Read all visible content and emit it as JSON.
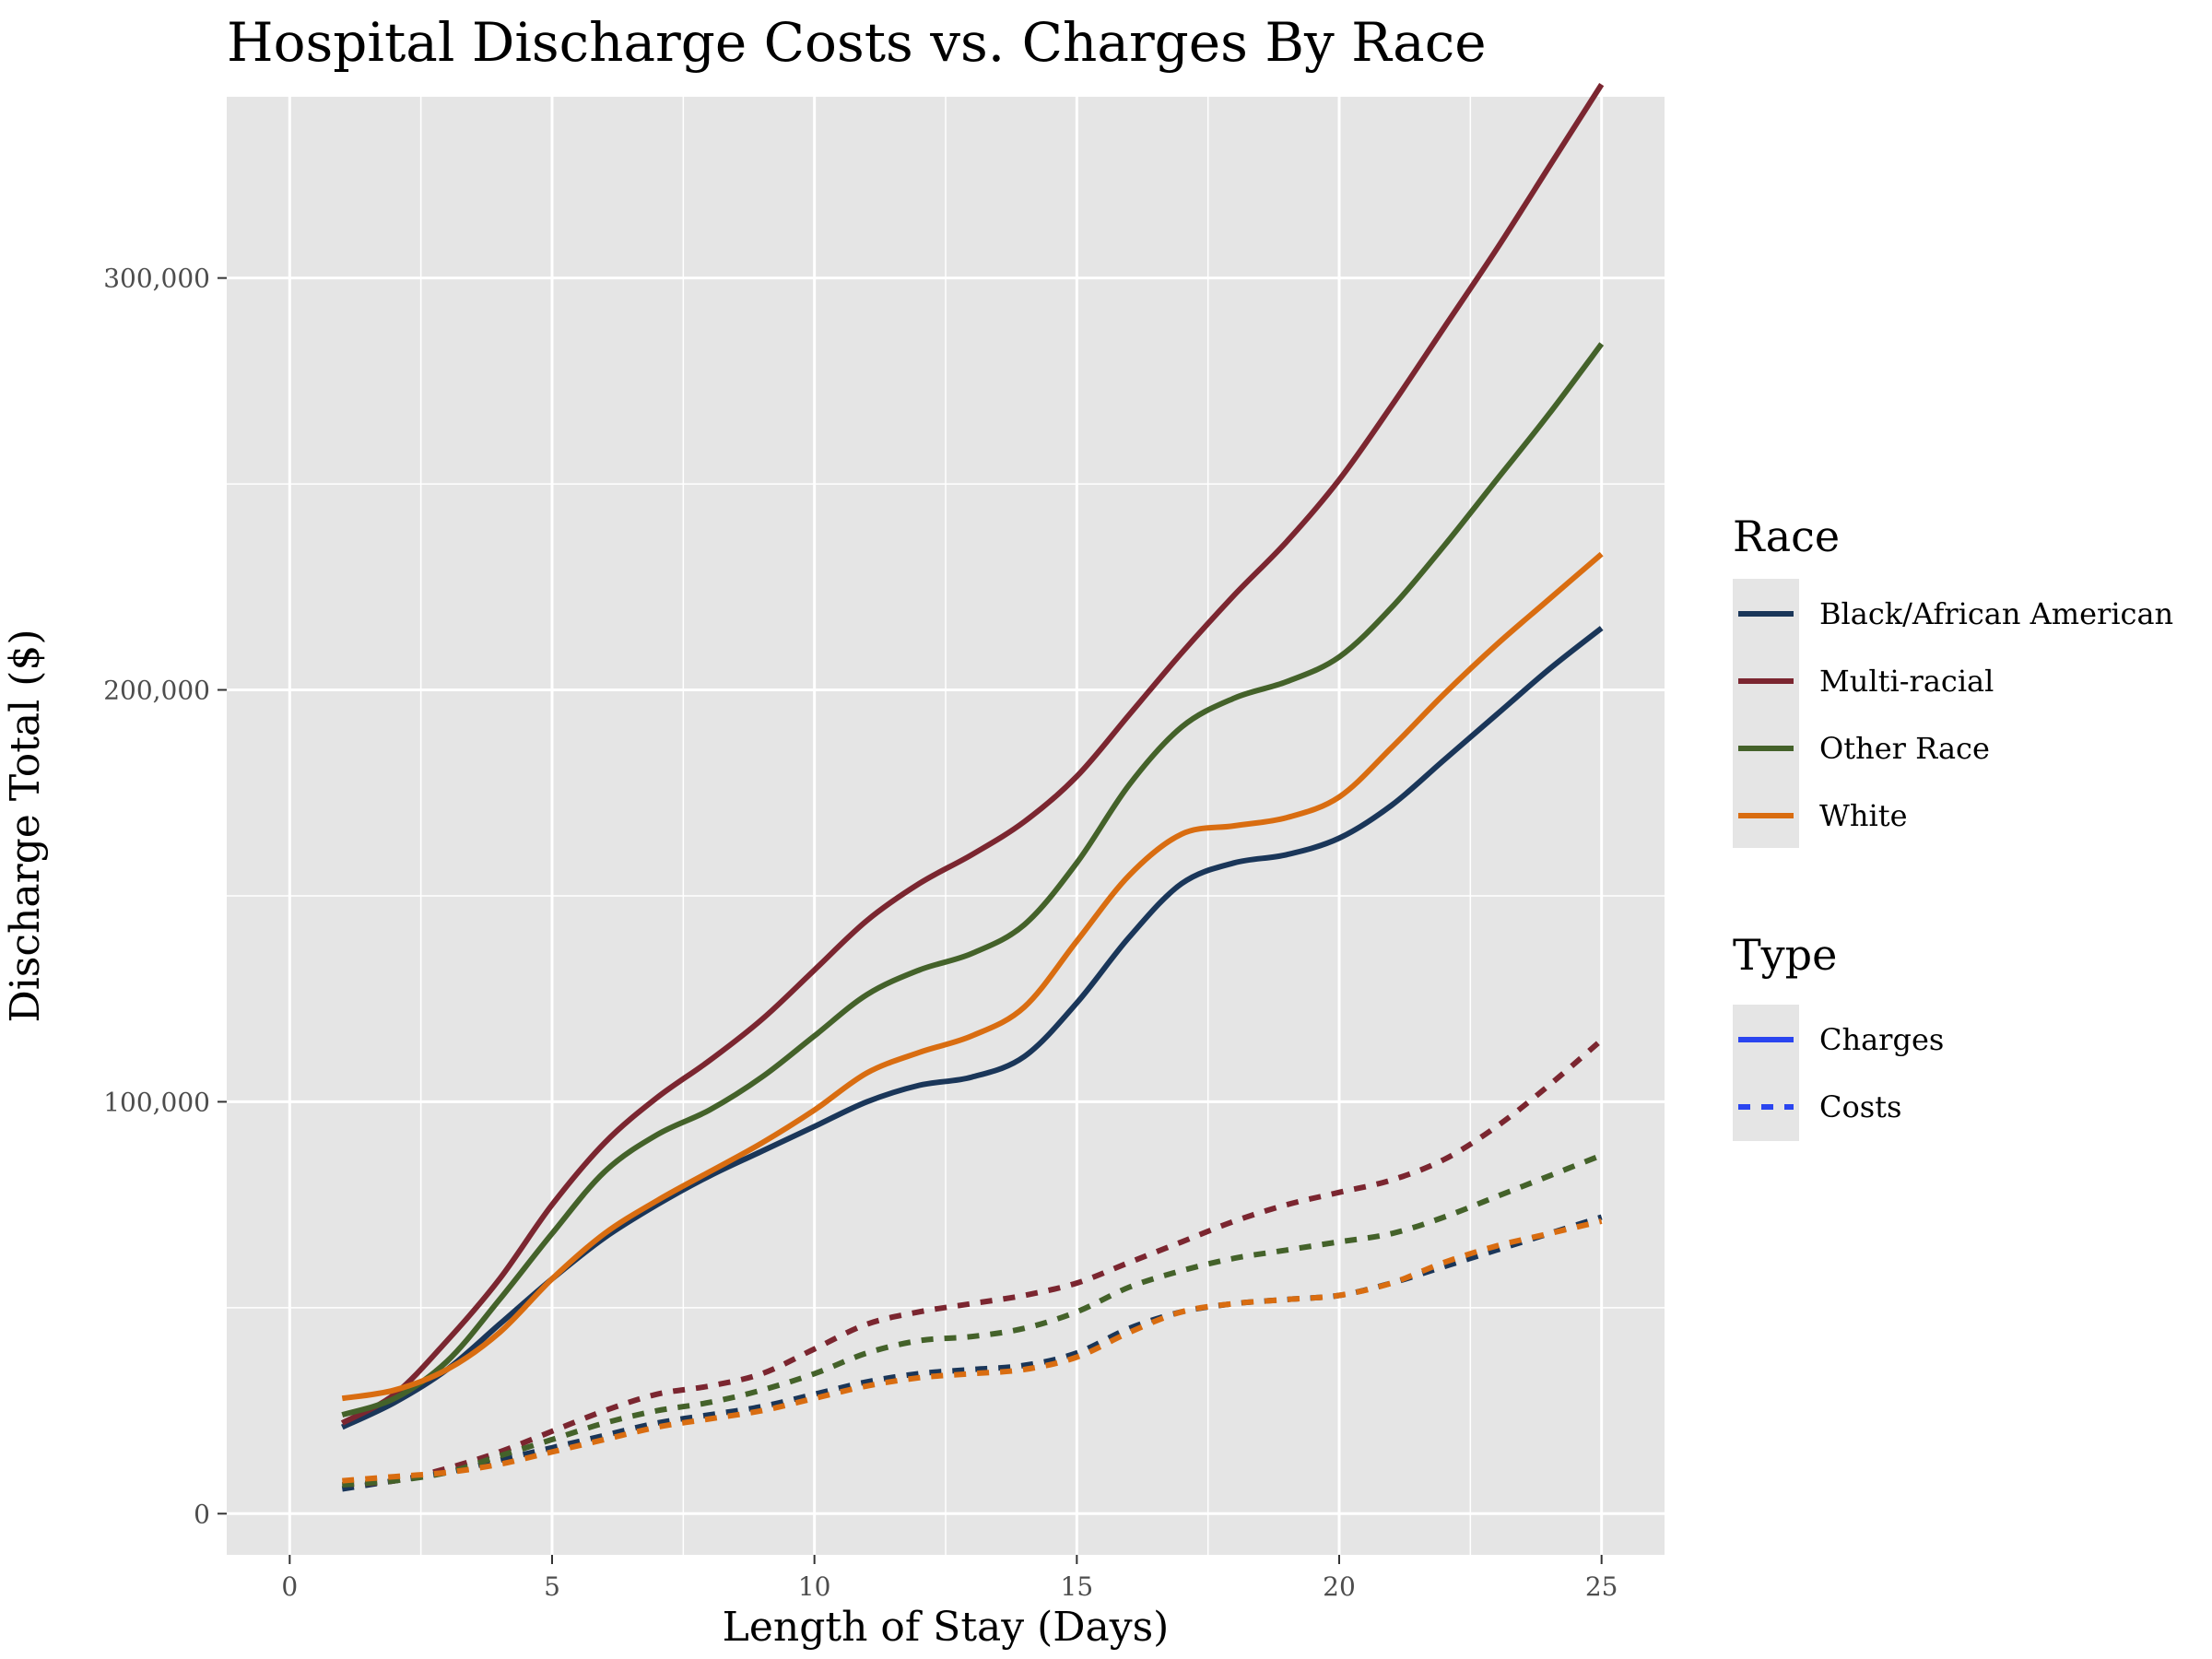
{
  "chart_data": {
    "type": "line",
    "title": "Hospital Discharge Costs vs. Charges By Race",
    "xlabel": "Length of Stay (Days)",
    "ylabel": "Discharge Total ($)",
    "xlim": [
      -1.2,
      26.2
    ],
    "ylim": [
      -10000,
      344000
    ],
    "x_ticks": [
      0,
      5,
      10,
      15,
      20,
      25
    ],
    "x_tick_labels": [
      "0",
      "5",
      "10",
      "15",
      "20",
      "25"
    ],
    "y_ticks": [
      0,
      100000,
      200000,
      300000
    ],
    "y_tick_labels": [
      "0",
      "100,000",
      "200,000",
      "300,000"
    ],
    "grid": true,
    "legend_position": "right",
    "x": [
      1,
      2,
      3,
      4,
      5,
      6,
      7,
      8,
      9,
      10,
      11,
      12,
      13,
      14,
      15,
      16,
      17,
      18,
      19,
      20,
      21,
      22,
      23,
      24,
      25
    ],
    "series": [
      {
        "race": "Black/African American",
        "type": "Charges",
        "color": "#1a3659",
        "values": [
          21000,
          27000,
          35000,
          46000,
          57000,
          67000,
          75000,
          82000,
          88000,
          94000,
          100000,
          104000,
          106000,
          111000,
          124000,
          140000,
          153000,
          158000,
          160000,
          164000,
          172000,
          183000,
          194000,
          205000,
          215000
        ]
      },
      {
        "race": "Multi-racial",
        "type": "Charges",
        "color": "#7b2630",
        "values": [
          22000,
          29000,
          42000,
          57000,
          75000,
          90000,
          101000,
          110000,
          120000,
          132000,
          144000,
          153000,
          160000,
          168000,
          179000,
          194000,
          209000,
          223000,
          236000,
          251000,
          269000,
          288000,
          307000,
          327000,
          347000
        ]
      },
      {
        "race": "Other Race",
        "type": "Charges",
        "color": "#44622a",
        "values": [
          24000,
          28000,
          37000,
          52000,
          68000,
          83000,
          92000,
          98000,
          106000,
          116000,
          126000,
          132000,
          136000,
          143000,
          158000,
          177000,
          191000,
          198000,
          202000,
          208000,
          220000,
          235000,
          251000,
          267000,
          284000
        ]
      },
      {
        "race": "White",
        "type": "Charges",
        "color": "#d96d11",
        "values": [
          28000,
          30000,
          35000,
          44000,
          57000,
          68000,
          76000,
          83000,
          90000,
          98000,
          107000,
          112000,
          116000,
          123000,
          139000,
          155000,
          165000,
          167000,
          169000,
          174000,
          186000,
          199000,
          211000,
          222000,
          233000
        ]
      },
      {
        "race": "Black/African American",
        "type": "Costs",
        "color": "#1a3659",
        "values": [
          6000,
          8000,
          10000,
          13000,
          16000,
          19000,
          22000,
          24000,
          26000,
          29000,
          32000,
          34000,
          35000,
          36000,
          39000,
          45000,
          49000,
          51000,
          52000,
          53000,
          56000,
          60000,
          64000,
          68000,
          72000
        ]
      },
      {
        "race": "Multi-racial",
        "type": "Costs",
        "color": "#7b2630",
        "values": [
          7000,
          8000,
          11000,
          15000,
          20000,
          25000,
          29000,
          31000,
          34000,
          40000,
          46000,
          49000,
          51000,
          53000,
          56000,
          61000,
          66000,
          71000,
          75000,
          78000,
          81000,
          86000,
          94000,
          104000,
          115000
        ]
      },
      {
        "race": "Other Race",
        "type": "Costs",
        "color": "#44622a",
        "values": [
          7000,
          8000,
          10000,
          14000,
          18000,
          22000,
          25000,
          27000,
          30000,
          34000,
          39000,
          42000,
          43000,
          45000,
          49000,
          55000,
          59000,
          62000,
          64000,
          66000,
          68000,
          72000,
          77000,
          82000,
          87000
        ]
      },
      {
        "race": "White",
        "type": "Costs",
        "color": "#d96d11",
        "values": [
          8000,
          9000,
          10000,
          12000,
          15000,
          18000,
          21000,
          23000,
          25000,
          28000,
          31000,
          33000,
          34000,
          35000,
          38000,
          44000,
          49000,
          51000,
          52000,
          53000,
          56000,
          61000,
          65000,
          68000,
          71000
        ]
      }
    ],
    "legend_race": {
      "title": "Race",
      "entries": [
        {
          "label": "Black/African American",
          "color": "#1a3659"
        },
        {
          "label": "Multi-racial",
          "color": "#7b2630"
        },
        {
          "label": "Other Race",
          "color": "#44622a"
        },
        {
          "label": "White",
          "color": "#d96d11"
        }
      ]
    },
    "legend_type": {
      "title": "Type",
      "entries": [
        {
          "label": "Charges",
          "style": "solid",
          "color": "#2a45f0"
        },
        {
          "label": "Costs",
          "style": "dashed",
          "color": "#2a45f0"
        }
      ]
    },
    "panel_background": "#e5e5e5",
    "gridline_color": "#ffffff"
  }
}
